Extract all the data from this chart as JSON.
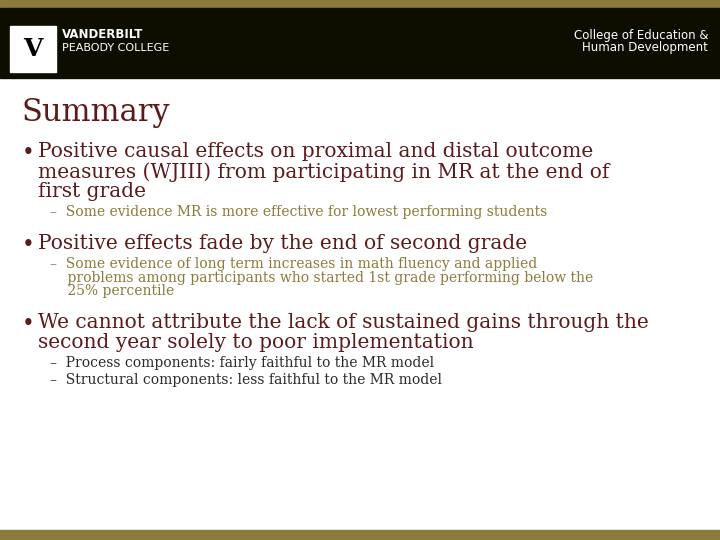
{
  "bg_color": "#ffffff",
  "header_bar_color": "#0d0d00",
  "top_stripe_color": "#8B7A3A",
  "bottom_stripe_color": "#8B7A3A",
  "title": "Summary",
  "title_color": "#5c1a1a",
  "title_fontsize": 22,
  "bullet_color": "#5c1a1a",
  "bullet_fontsize": 14.5,
  "sub_color": "#8B7A3A",
  "sub_fontsize": 10,
  "sub2_color": "#2a2a2a",
  "sub2_fontsize": 10,
  "header_text_left1": "VANDERBILT",
  "header_text_left2": "PEABODY COLLEGE",
  "header_text_right1": "College of Education &",
  "header_text_right2": "Human Development",
  "header_fontsize": 8.5,
  "bullets": [
    {
      "text": "Positive causal effects on proximal and distal outcome\nmeasures (WJIII) from participating in MR at the end of\nfirst grade",
      "subs": [
        {
          "text": "–  Some evidence MR is more effective for lowest performing students",
          "color": "#8B7A3A"
        }
      ]
    },
    {
      "text": "Positive effects fade by the end of second grade",
      "subs": [
        {
          "text": "–  Some evidence of long term increases in math fluency and applied\n    problems among participants who started 1st grade performing below the\n    25% percentile",
          "color": "#8B7A3A"
        }
      ]
    },
    {
      "text": "We cannot attribute the lack of sustained gains through the\nsecond year solely to poor implementation",
      "subs": [
        {
          "text": "–  Process components: fairly faithful to the MR model",
          "color": "#2a2a2a"
        },
        {
          "text": "–  Structural components: less faithful to the MR model",
          "color": "#2a2a2a"
        }
      ]
    }
  ]
}
